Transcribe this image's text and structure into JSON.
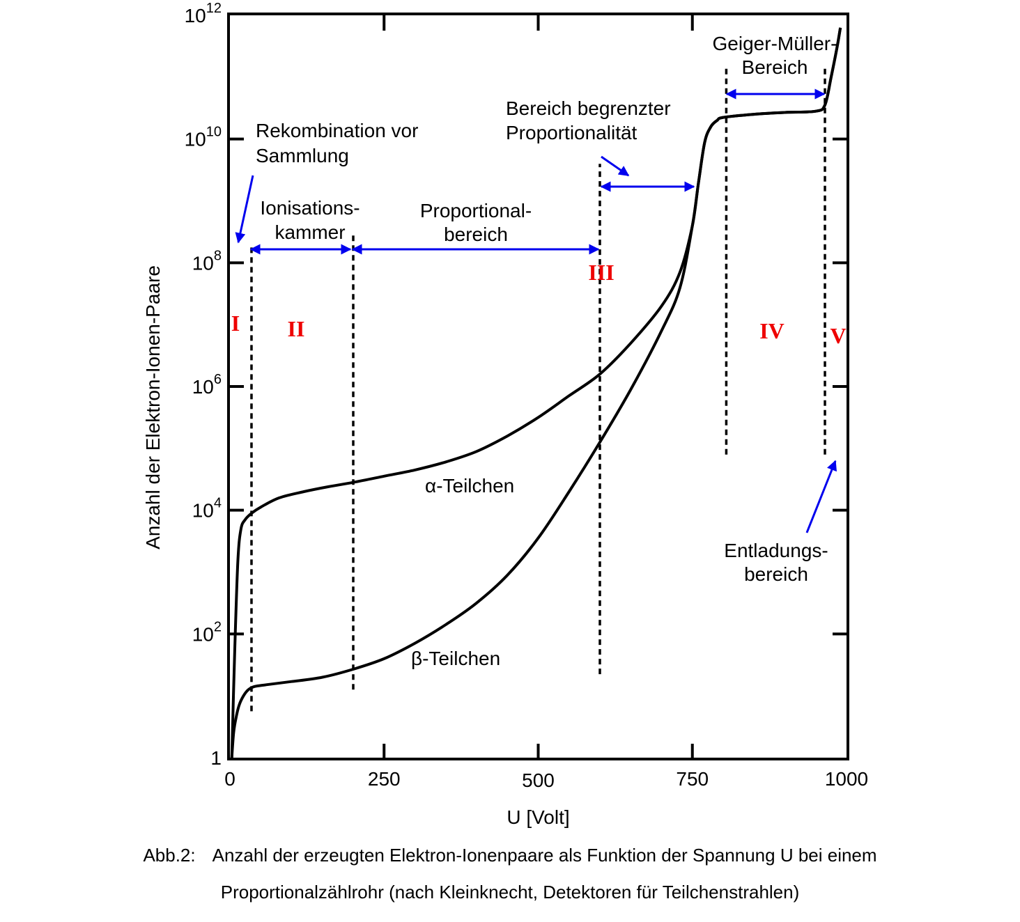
{
  "chart_data": {
    "type": "line",
    "xlabel": "U [Volt]",
    "ylabel": "Anzahl der Elektron-Ionen-Paare",
    "xlim": [
      0,
      1000
    ],
    "ylim_log10": [
      0,
      12
    ],
    "y_scale": "log",
    "x_ticks": [
      "0",
      "250",
      "500",
      "750",
      "1000"
    ],
    "x_tick_values": [
      0,
      250,
      500,
      750,
      1000
    ],
    "y_ticks": [
      {
        "value": 0,
        "base": "1",
        "exp": ""
      },
      {
        "value": 2,
        "base": "10",
        "exp": "2"
      },
      {
        "value": 4,
        "base": "10",
        "exp": "4"
      },
      {
        "value": 6,
        "base": "10",
        "exp": "6"
      },
      {
        "value": 8,
        "base": "10",
        "exp": "8"
      },
      {
        "value": 10,
        "base": "10",
        "exp": "10"
      },
      {
        "value": 12,
        "base": "10",
        "exp": "12"
      }
    ],
    "series": [
      {
        "name": "α-Teilchen",
        "x": [
          3,
          8,
          13,
          18,
          25,
          35,
          50,
          80,
          120,
          160,
          200,
          250,
          300,
          350,
          400,
          450,
          500,
          550,
          600,
          650,
          700,
          730,
          750,
          760,
          770,
          780,
          790,
          800,
          850,
          900,
          950,
          965,
          975,
          985,
          990
        ],
        "y": [
          0,
          1.8,
          3.2,
          3.7,
          3.85,
          3.95,
          4.05,
          4.2,
          4.3,
          4.38,
          4.45,
          4.55,
          4.65,
          4.78,
          4.95,
          5.2,
          5.5,
          5.85,
          6.2,
          6.7,
          7.3,
          7.85,
          8.6,
          9.3,
          9.95,
          10.2,
          10.3,
          10.35,
          10.4,
          10.43,
          10.45,
          10.55,
          11.0,
          11.5,
          11.8
        ]
      },
      {
        "name": "β-Teilchen",
        "x": [
          3,
          6,
          10,
          15,
          22,
          30,
          40,
          60,
          100,
          150,
          200,
          250,
          300,
          350,
          400,
          450,
          500,
          550,
          600,
          650,
          700,
          730,
          750,
          760,
          770,
          780,
          790,
          800,
          850,
          900,
          950,
          965,
          975,
          985,
          990
        ],
        "y": [
          0,
          0.4,
          0.65,
          0.85,
          1.0,
          1.1,
          1.15,
          1.18,
          1.23,
          1.3,
          1.43,
          1.6,
          1.85,
          2.15,
          2.5,
          2.95,
          3.55,
          4.3,
          5.1,
          5.95,
          6.9,
          7.6,
          8.6,
          9.3,
          9.95,
          10.2,
          10.3,
          10.35,
          10.4,
          10.43,
          10.45,
          10.55,
          11.0,
          11.5,
          11.8
        ]
      }
    ],
    "grid": false,
    "legend": "none",
    "boundaries": [
      {
        "x": 35,
        "y_from": 0.75,
        "y_to": 8.3
      },
      {
        "x": 200,
        "y_from": 1.1,
        "y_to": 8.45
      },
      {
        "x": 600,
        "y_from": 1.35,
        "y_to": 9.6
      },
      {
        "x": 805,
        "y_from": 4.9,
        "y_to": 11.2
      },
      {
        "x": 965,
        "y_from": 4.9,
        "y_to": 11.2
      }
    ],
    "regions": [
      "I",
      "II",
      "III",
      "IV",
      "V"
    ],
    "annotations": {
      "recombination": [
        "Rekombination vor",
        "Sammlung"
      ],
      "ionization": [
        "Ionisations-",
        "kammer"
      ],
      "proportional": [
        "Proportional-",
        "bereich"
      ],
      "limited_prop": [
        "Bereich begrenzter",
        "Proportionalität"
      ],
      "geiger": [
        "Geiger-Müller-",
        "Bereich"
      ],
      "discharge": [
        "Entladungs-",
        "bereich"
      ]
    },
    "colors": {
      "curve": "#000000",
      "arrow": "#0000ee",
      "roman": "#ee0000"
    }
  },
  "caption": {
    "label": "Abb.2:",
    "line1": "Anzahl der erzeugten Elektron-Ionenpaare als Funktion der Spannung U bei einem",
    "line2": "Proportionalzählrohr (nach Kleinknecht, Detektoren für Teilchenstrahlen)"
  }
}
